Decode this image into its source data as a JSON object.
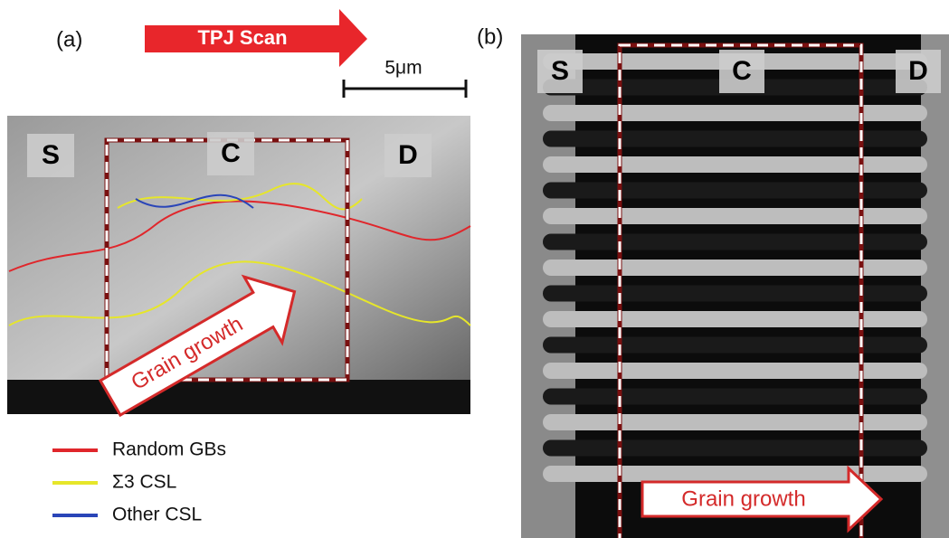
{
  "panels": [
    {
      "label": "(a)",
      "regions": [
        "S",
        "C",
        "D"
      ],
      "annotation": "Grain growth"
    },
    {
      "label": "(b)",
      "regions": [
        "S",
        "C",
        "D"
      ],
      "annotation": "Grain growth"
    }
  ],
  "scan": "TPJ Scan",
  "scale_bar": "5μm",
  "legend": [
    {
      "name": "Random GBs",
      "color": "#e0262b"
    },
    {
      "name": "Σ3 CSL",
      "color": "#e6e62a"
    },
    {
      "name": "Other CSL",
      "color": "#2a45b8"
    }
  ]
}
